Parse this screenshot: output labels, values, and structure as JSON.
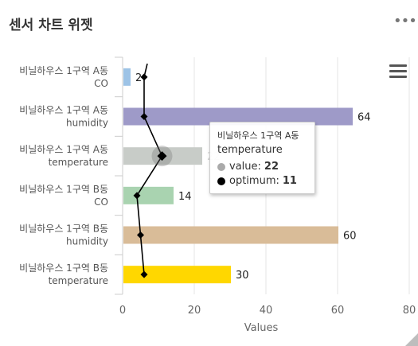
{
  "widget": {
    "title": "센서 차트 위젯",
    "more_label": "•••"
  },
  "chart_data": {
    "type": "bar",
    "orientation": "horizontal",
    "categories": [
      [
        "비닐하우스 1구역 A동",
        "CO"
      ],
      [
        "비닐하우스 1구역 A동",
        "humidity"
      ],
      [
        "비닐하우스 1구역 A동",
        "temperature"
      ],
      [
        "비닐하우스 1구역 B동",
        "CO"
      ],
      [
        "비닐하우스 1구역 B동",
        "humidity"
      ],
      [
        "비닐하우스 1구역 B동",
        "temperature"
      ]
    ],
    "series": [
      {
        "name": "value",
        "type": "bar",
        "values": [
          2,
          64,
          22,
          14,
          60,
          30
        ],
        "colors": [
          "#9DC3E6",
          "#9E9AC8",
          "#C8CCC8",
          "#A9D3B0",
          "#D9BC98",
          "#FFD700"
        ],
        "data_labels": [
          "2",
          "64",
          "22",
          "14",
          "60",
          "30"
        ]
      },
      {
        "name": "optimum",
        "type": "line",
        "values": [
          6,
          6,
          11,
          4,
          5,
          6
        ],
        "color": "#000000",
        "marker": "diamond"
      }
    ],
    "xlabel": "Values",
    "xlim": [
      0,
      80
    ],
    "xticks": [
      0,
      20,
      40,
      60,
      80
    ],
    "grid": true,
    "highlighted_index": 2
  },
  "tooltip": {
    "title": "비닐하우스 1구역 A동",
    "category": "temperature",
    "rows": [
      {
        "label": "value",
        "value": "22",
        "color": "#AAAAAA"
      },
      {
        "label": "optimum",
        "value": "11",
        "color": "#000000"
      }
    ]
  },
  "menu_icon": "hamburger-menu-icon"
}
